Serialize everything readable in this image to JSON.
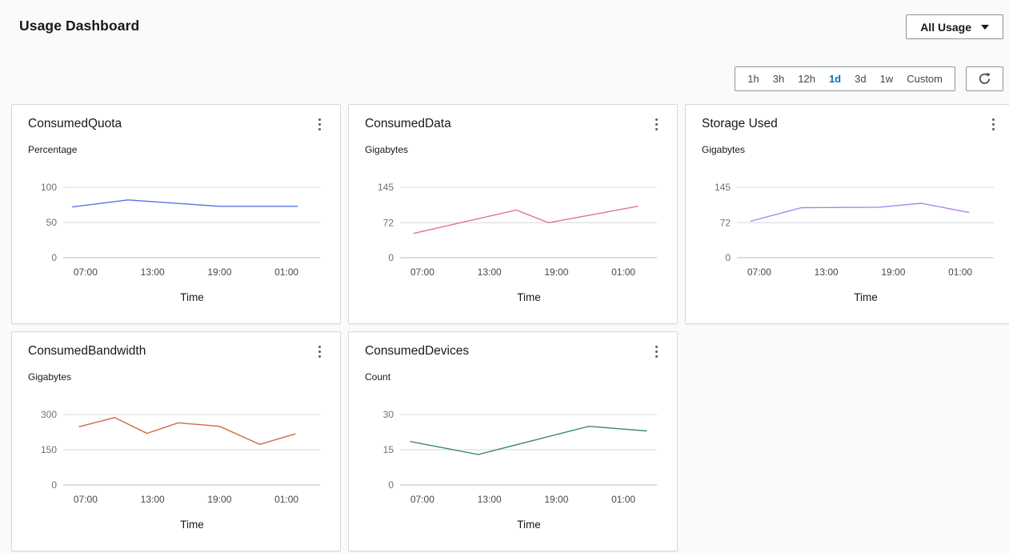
{
  "header": {
    "title": "Usage Dashboard",
    "usage_dropdown_label": "All Usage"
  },
  "toolbar": {
    "ranges": [
      "1h",
      "3h",
      "12h",
      "1d",
      "3d",
      "1w",
      "Custom"
    ],
    "selected_range": "1d",
    "selected_color": "#0073bb",
    "refresh_icon": "refresh-icon"
  },
  "colors": {
    "card_border": "#d5d9d9",
    "gridline": "#d5d9d9",
    "tick_label": "#687078",
    "text_dark": "#16191f"
  },
  "chart_data": [
    {
      "type": "line",
      "title": "ConsumedQuota",
      "ylabel": "Percentage",
      "xlabel": "Time",
      "color": "#5673e0",
      "yticks": [
        100,
        50,
        0
      ],
      "ylim": [
        0,
        100
      ],
      "xtick_labels": [
        "07:00",
        "13:00",
        "19:00",
        "01:00"
      ],
      "xtick_hours": [
        7,
        13,
        19,
        25
      ],
      "xlim_hours": [
        5,
        28
      ],
      "points": [
        [
          5.8,
          72
        ],
        [
          10.8,
          82
        ],
        [
          19,
          73
        ],
        [
          26,
          73
        ]
      ]
    },
    {
      "type": "line",
      "title": "ConsumedData",
      "ylabel": "Gigabytes",
      "xlabel": "Time",
      "color": "#dd7589",
      "yticks": [
        145,
        72,
        0
      ],
      "ylim": [
        0,
        145
      ],
      "xtick_labels": [
        "07:00",
        "13:00",
        "19:00",
        "01:00"
      ],
      "xtick_hours": [
        7,
        13,
        19,
        25
      ],
      "xlim_hours": [
        5,
        28
      ],
      "points": [
        [
          6.2,
          50
        ],
        [
          15.4,
          98
        ],
        [
          18.3,
          72
        ],
        [
          26.3,
          106
        ]
      ]
    },
    {
      "type": "line",
      "title": "Storage Used",
      "ylabel": "Gigabytes",
      "xlabel": "Time",
      "color": "#a886ec",
      "yticks": [
        145,
        72,
        0
      ],
      "ylim": [
        0,
        145
      ],
      "xtick_labels": [
        "07:00",
        "13:00",
        "19:00",
        "01:00"
      ],
      "xtick_hours": [
        7,
        13,
        19,
        25
      ],
      "xlim_hours": [
        5,
        28
      ],
      "points": [
        [
          6.2,
          75
        ],
        [
          10.8,
          103
        ],
        [
          17.7,
          104
        ],
        [
          21.5,
          112
        ],
        [
          25.8,
          93
        ]
      ]
    },
    {
      "type": "line",
      "title": "ConsumedBandwidth",
      "ylabel": "Gigabytes",
      "xlabel": "Time",
      "color": "#ce6a3d",
      "yticks": [
        300,
        150,
        0
      ],
      "ylim": [
        0,
        300
      ],
      "xtick_labels": [
        "07:00",
        "13:00",
        "19:00",
        "01:00"
      ],
      "xtick_hours": [
        7,
        13,
        19,
        25
      ],
      "xlim_hours": [
        5,
        28
      ],
      "points": [
        [
          6.4,
          248
        ],
        [
          9.6,
          287
        ],
        [
          12.5,
          220
        ],
        [
          15.3,
          265
        ],
        [
          19,
          250
        ],
        [
          22.6,
          173
        ],
        [
          25.8,
          218
        ]
      ]
    },
    {
      "type": "line",
      "title": "ConsumedDevices",
      "ylabel": "Count",
      "xlabel": "Time",
      "color": "#3f8a6d",
      "yticks": [
        30,
        15,
        0
      ],
      "ylim": [
        0,
        30
      ],
      "xtick_labels": [
        "07:00",
        "13:00",
        "19:00",
        "01:00"
      ],
      "xtick_hours": [
        7,
        13,
        19,
        25
      ],
      "xlim_hours": [
        5,
        28
      ],
      "points": [
        [
          5.9,
          18.5
        ],
        [
          12,
          13
        ],
        [
          21.9,
          25
        ],
        [
          27.1,
          23
        ]
      ]
    }
  ]
}
